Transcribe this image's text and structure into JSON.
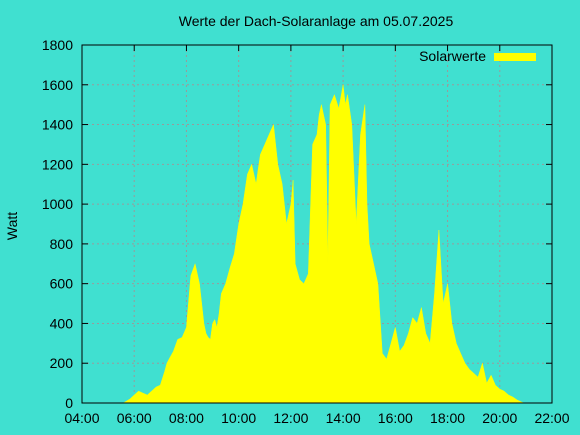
{
  "chart_data": {
    "type": "area",
    "title": "Werte der Dach-Solaranlage am 05.07.2025",
    "xlabel": "",
    "ylabel": "Watt",
    "xlim": [
      "04:00",
      "22:00"
    ],
    "ylim": [
      0,
      1800
    ],
    "x_ticks": [
      "04:00",
      "06:00",
      "08:00",
      "10:00",
      "12:00",
      "14:00",
      "16:00",
      "18:00",
      "20:00",
      "22:00"
    ],
    "y_ticks": [
      0,
      200,
      400,
      600,
      800,
      1000,
      1200,
      1400,
      1600,
      1800
    ],
    "grid": true,
    "legend_position": "top-right",
    "colors": {
      "series": "#ffff00",
      "background": "#40e0d0",
      "grid": "#9a9a9a"
    },
    "series": [
      {
        "name": "Solarwerte",
        "x": [
          "05:35",
          "05:50",
          "06:00",
          "06:10",
          "06:20",
          "06:30",
          "06:40",
          "06:50",
          "07:00",
          "07:10",
          "07:15",
          "07:20",
          "07:30",
          "07:40",
          "07:50",
          "08:00",
          "08:10",
          "08:20",
          "08:30",
          "08:40",
          "08:45",
          "08:50",
          "08:55",
          "09:00",
          "09:05",
          "09:10",
          "09:15",
          "09:20",
          "09:30",
          "09:40",
          "09:50",
          "10:00",
          "10:10",
          "10:20",
          "10:30",
          "10:40",
          "10:45",
          "10:50",
          "11:00",
          "11:10",
          "11:20",
          "11:30",
          "11:40",
          "11:50",
          "12:00",
          "12:05",
          "12:10",
          "12:20",
          "12:30",
          "12:40",
          "12:50",
          "13:00",
          "13:05",
          "13:10",
          "13:20",
          "13:25",
          "13:30",
          "13:40",
          "13:50",
          "14:00",
          "14:05",
          "14:10",
          "14:20",
          "14:30",
          "14:40",
          "14:50",
          "14:55",
          "15:00",
          "15:10",
          "15:20",
          "15:30",
          "15:40",
          "15:50",
          "16:00",
          "16:10",
          "16:20",
          "16:30",
          "16:40",
          "16:50",
          "17:00",
          "17:10",
          "17:20",
          "17:30",
          "17:40",
          "17:50",
          "18:00",
          "18:10",
          "18:20",
          "18:30",
          "18:40",
          "18:50",
          "19:00",
          "19:10",
          "19:20",
          "19:30",
          "19:40",
          "19:50",
          "20:00",
          "20:10",
          "20:20",
          "20:30",
          "20:40",
          "20:50",
          "20:55"
        ],
        "values": [
          0,
          20,
          40,
          60,
          50,
          40,
          60,
          80,
          90,
          160,
          200,
          220,
          260,
          320,
          330,
          380,
          640,
          700,
          600,
          400,
          350,
          330,
          320,
          400,
          420,
          380,
          450,
          550,
          600,
          680,
          750,
          900,
          1000,
          1150,
          1200,
          1100,
          1180,
          1250,
          1300,
          1350,
          1400,
          1200,
          1100,
          900,
          1000,
          1120,
          700,
          620,
          600,
          650,
          1300,
          1350,
          1450,
          1500,
          1400,
          700,
          1500,
          1550,
          1480,
          1600,
          1500,
          1550,
          1400,
          900,
          1350,
          1500,
          1000,
          800,
          700,
          600,
          250,
          220,
          300,
          380,
          260,
          290,
          350,
          430,
          400,
          480,
          350,
          300,
          550,
          870,
          500,
          600,
          400,
          300,
          250,
          200,
          170,
          150,
          130,
          200,
          100,
          140,
          90,
          70,
          60,
          40,
          30,
          15,
          5,
          0
        ]
      }
    ]
  }
}
